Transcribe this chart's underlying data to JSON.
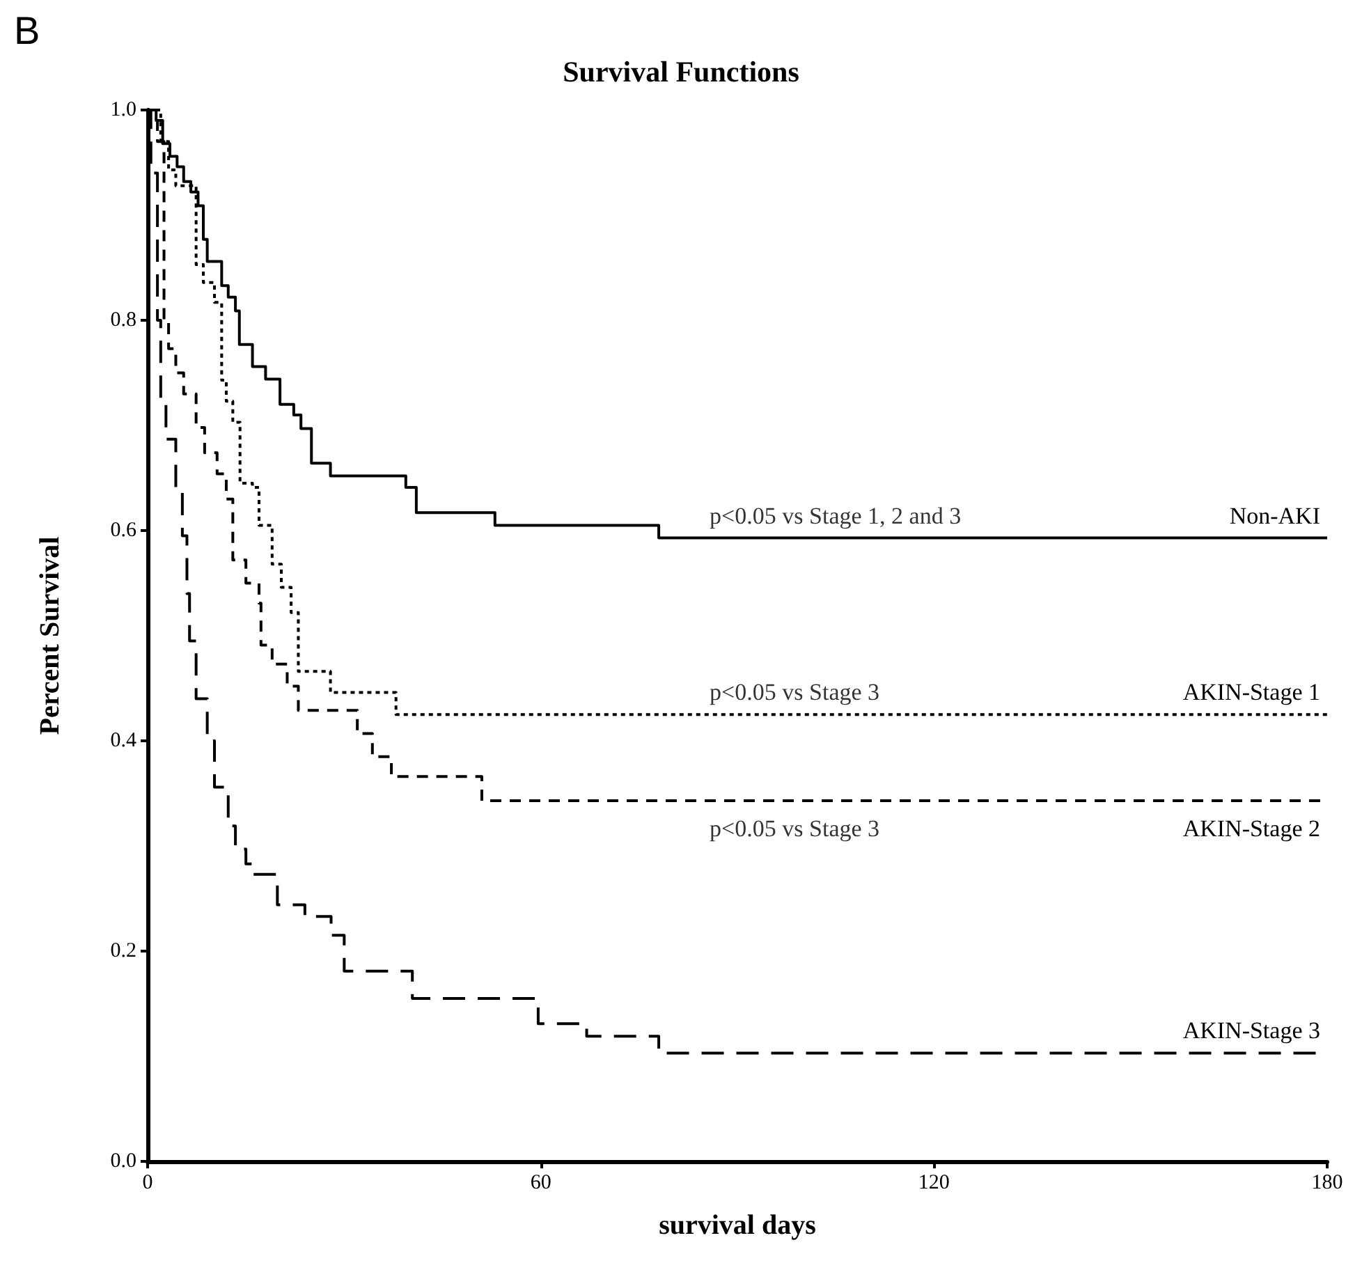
{
  "chart_data": {
    "type": "step",
    "title": "Survival Functions",
    "xlabel": "survival days",
    "ylabel": "Percent Survival",
    "annotations": [
      "B",
      "p<0.05 vs Stage 1, 2 and 3",
      "p<0.05 vs Stage 3",
      "p<0.05 vs Stage 3"
    ],
    "xlim": [
      0,
      180
    ],
    "xticks": [
      0,
      60,
      120,
      180
    ],
    "ylim": [
      0,
      1
    ],
    "yticks": [
      {
        "value": 0,
        "label": "0.0"
      },
      0.2,
      0.4,
      0.6,
      0.8,
      {
        "value": 1,
        "label": "1.0"
      }
    ],
    "grid": false,
    "legend": false,
    "series": [
      {
        "name": "Non-AKI",
        "color": "#000000",
        "line_style": "solid",
        "x": [
          0,
          1.3,
          2.3,
          3.4,
          4.5,
          5.5,
          6.6,
          7.7,
          8.5,
          9.1,
          11.3,
          12.3,
          13.4,
          14,
          16,
          18,
          20.2,
          22.3,
          23.4,
          25,
          27.9,
          39.4,
          41,
          53,
          78,
          180
        ],
        "values": [
          1,
          0.99,
          0.968,
          0.956,
          0.946,
          0.932,
          0.922,
          0.909,
          0.877,
          0.856,
          0.833,
          0.822,
          0.809,
          0.777,
          0.756,
          0.744,
          0.72,
          0.71,
          0.697,
          0.664,
          0.652,
          0.641,
          0.617,
          0.605,
          0.593,
          0.593
        ]
      },
      {
        "name": "AKIN-Stage 1",
        "color": "#000000",
        "line_style": "dotted",
        "x": [
          0,
          2,
          3.2,
          4.3,
          7.4,
          8.5,
          10.2,
          11.3,
          12,
          13,
          14.1,
          16,
          17,
          19,
          20.4,
          21.9,
          23,
          27.9,
          37.9,
          180
        ],
        "values": [
          1,
          0.97,
          0.943,
          0.928,
          0.853,
          0.836,
          0.817,
          0.743,
          0.723,
          0.703,
          0.645,
          0.641,
          0.605,
          0.568,
          0.546,
          0.522,
          0.466,
          0.446,
          0.425,
          0.425
        ]
      },
      {
        "name": "AKIN-Stage 2",
        "color": "#000000",
        "line_style": "dashed",
        "x": [
          0,
          1.5,
          2.5,
          3.2,
          4.3,
          5.5,
          7.4,
          8.7,
          10.6,
          12,
          13,
          15,
          17,
          17.3,
          19,
          21.3,
          23,
          32,
          34.3,
          37.2,
          51,
          180
        ],
        "values": [
          1,
          0.97,
          0.8,
          0.773,
          0.75,
          0.73,
          0.698,
          0.674,
          0.654,
          0.63,
          0.572,
          0.55,
          0.531,
          0.491,
          0.473,
          0.452,
          0.429,
          0.407,
          0.385,
          0.366,
          0.343,
          0.343
        ]
      },
      {
        "name": "AKIN-Stage 3",
        "color": "#000000",
        "line_style": "long-dashed",
        "x": [
          0,
          0.5,
          1.5,
          2,
          2.8,
          4.3,
          5.3,
          6,
          6.4,
          7.4,
          9.1,
          10.2,
          12.3,
          13.4,
          15,
          16,
          19.8,
          24,
          28,
          30,
          40.4,
          59.6,
          67,
          78,
          180
        ],
        "values": [
          1,
          0.94,
          0.8,
          0.72,
          0.687,
          0.64,
          0.595,
          0.54,
          0.495,
          0.44,
          0.4,
          0.356,
          0.319,
          0.297,
          0.283,
          0.273,
          0.244,
          0.233,
          0.215,
          0.181,
          0.155,
          0.131,
          0.119,
          0.103,
          0.103
        ]
      }
    ]
  }
}
